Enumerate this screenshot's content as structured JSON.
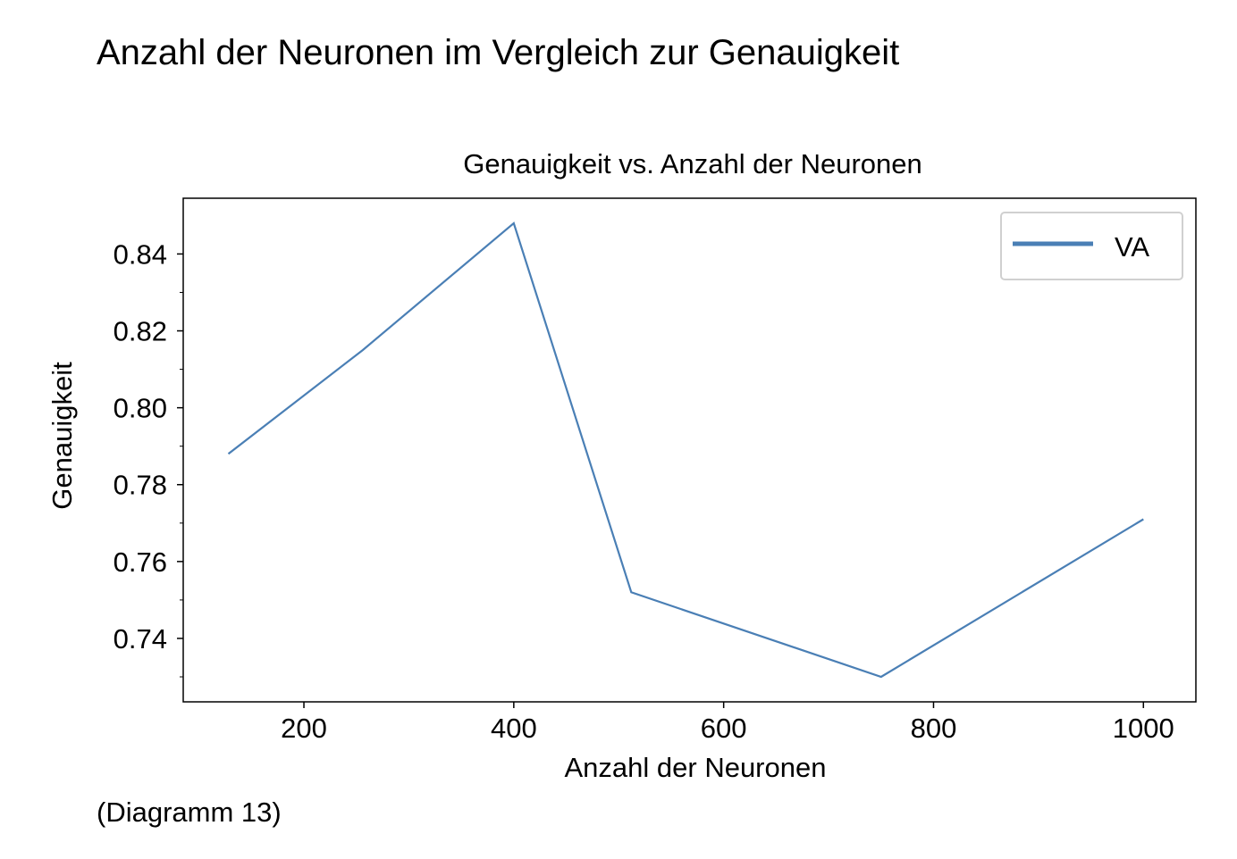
{
  "heading": "Anzahl der Neuronen im Vergleich zur Genauigkeit",
  "caption": "(Diagramm 13)",
  "chart_data": {
    "type": "line",
    "title": "Genauigkeit vs. Anzahl der Neuronen",
    "xlabel": "Anzahl der Neuronen",
    "ylabel": "Genauigkeit",
    "xlim": [
      85,
      1050
    ],
    "ylim": [
      0.7235,
      0.8545
    ],
    "x_ticks": [
      200,
      400,
      600,
      800,
      1000
    ],
    "x_tick_labels": [
      "200",
      "400",
      "600",
      "800",
      "1000"
    ],
    "y_ticks": [
      0.74,
      0.76,
      0.78,
      0.8,
      0.82,
      0.84
    ],
    "y_tick_labels": [
      "0.74",
      "0.76",
      "0.78",
      "0.80",
      "0.82",
      "0.84"
    ],
    "y_minor_ticks": [
      0.73,
      0.75,
      0.77,
      0.79,
      0.81,
      0.83
    ],
    "grid": false,
    "legend_position": "top-right",
    "series": [
      {
        "name": "VA",
        "color": "#4a7fb5",
        "x": [
          128,
          256,
          400,
          512,
          750,
          1000
        ],
        "y": [
          0.788,
          0.815,
          0.848,
          0.752,
          0.73,
          0.771
        ]
      }
    ]
  }
}
